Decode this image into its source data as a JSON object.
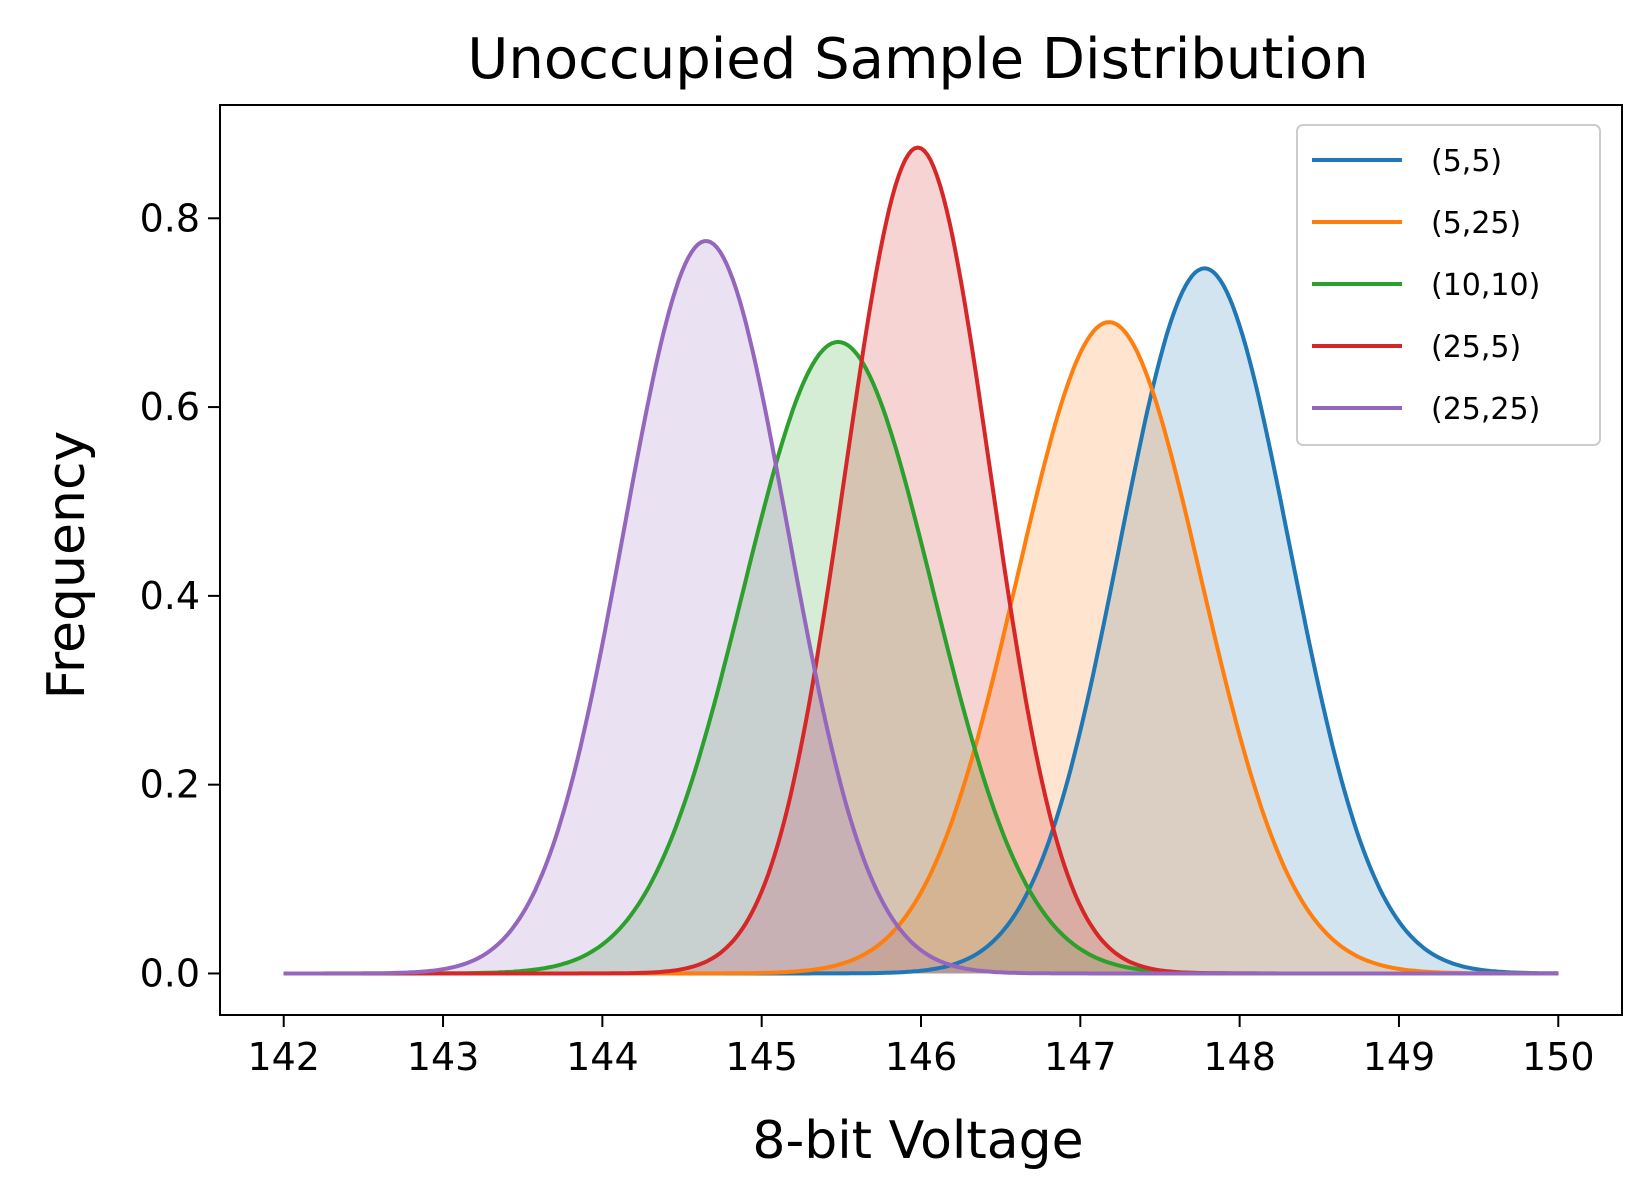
{
  "chart_data": {
    "type": "area",
    "title": "Unoccupied Sample Distribution",
    "xlabel": "8-bit Voltage",
    "ylabel": "Frequency",
    "xlim": [
      141.6,
      150.4
    ],
    "ylim": [
      -0.044,
      0.92
    ],
    "xticks": [
      142,
      143,
      144,
      145,
      146,
      147,
      148,
      149,
      150
    ],
    "yticks": [
      0.0,
      0.2,
      0.4,
      0.6,
      0.8
    ],
    "ytick_labels": [
      "0.0",
      "0.2",
      "0.4",
      "0.6",
      "0.8"
    ],
    "x_range": [
      142,
      150
    ],
    "curve_shape": "normal",
    "grid": false,
    "legend_position": "top-right",
    "series": [
      {
        "name": "(5,5)",
        "color": "#1f77b4",
        "mean": 147.78,
        "std": 0.534,
        "peak": 0.747
      },
      {
        "name": "(5,25)",
        "color": "#ff7f0e",
        "mean": 147.18,
        "std": 0.578,
        "peak": 0.69
      },
      {
        "name": "(10,10)",
        "color": "#2ca02c",
        "mean": 145.48,
        "std": 0.596,
        "peak": 0.669
      },
      {
        "name": "(25,5)",
        "color": "#d62728",
        "mean": 145.98,
        "std": 0.456,
        "peak": 0.875
      },
      {
        "name": "(25,25)",
        "color": "#9467bd",
        "mean": 144.65,
        "std": 0.514,
        "peak": 0.776
      }
    ]
  }
}
